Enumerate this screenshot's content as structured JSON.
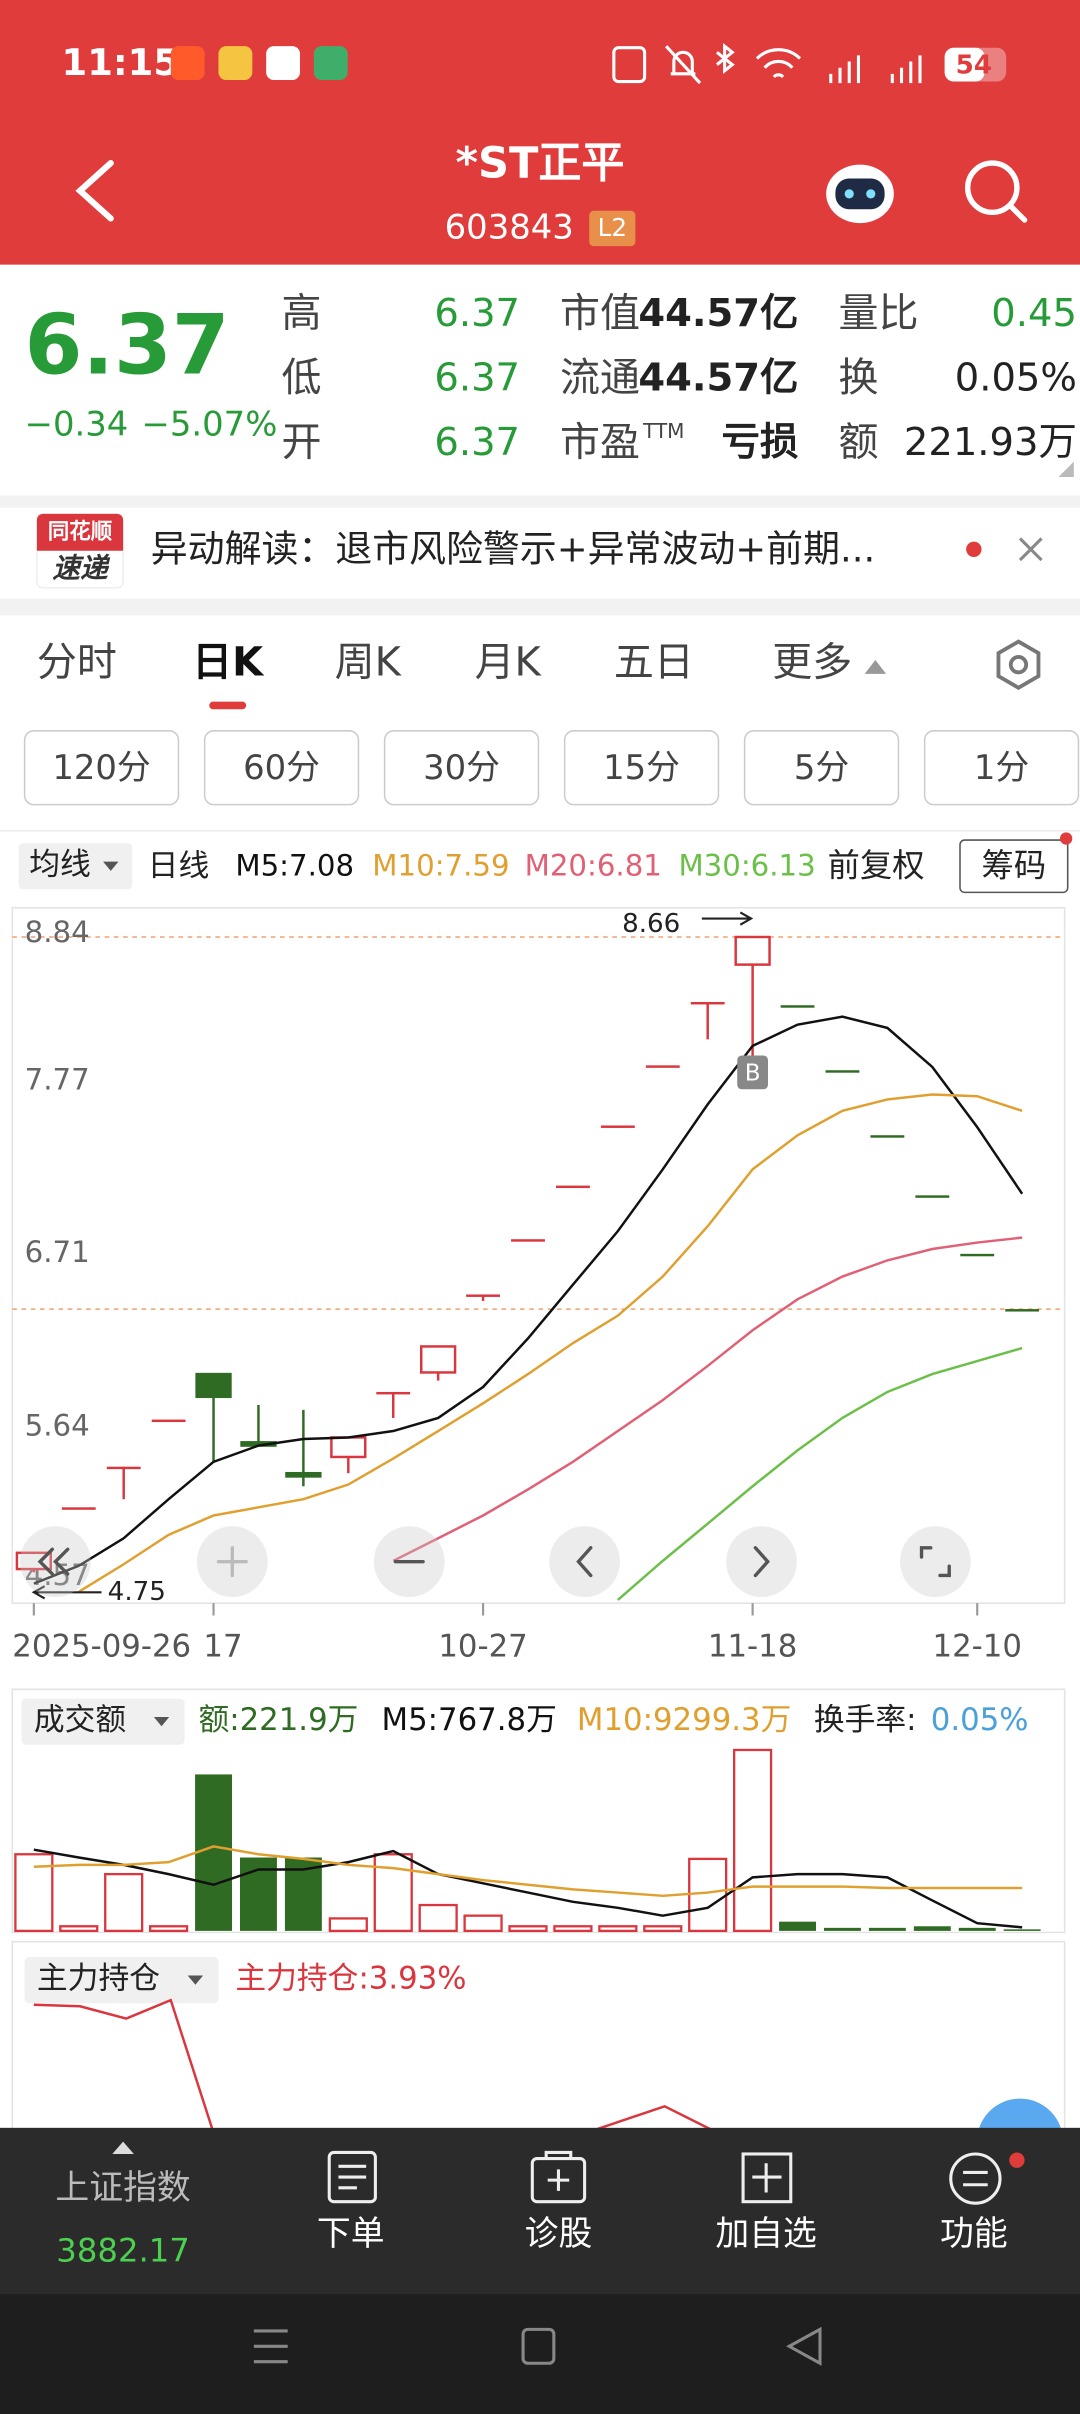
{
  "status": {
    "time": "11:15",
    "battery": "54"
  },
  "header": {
    "title": "*ST正平",
    "code": "603843",
    "badge": "L2"
  },
  "quote": {
    "price": "6.37",
    "change": "−0.34",
    "change_pct": "−5.07%",
    "color": "#279b37",
    "stats": [
      {
        "label": "高",
        "value": "6.37",
        "color": "#279b37"
      },
      {
        "label": "低",
        "value": "6.37",
        "color": "#279b37"
      },
      {
        "label": "开",
        "value": "6.37",
        "color": "#279b37"
      },
      {
        "label": "市值",
        "value": "44.57亿",
        "color": "#222222"
      },
      {
        "label": "流通",
        "value": "44.57亿",
        "color": "#222222"
      },
      {
        "label": "市盈",
        "label_sup": "TTM",
        "value": "亏损",
        "color": "#222222"
      },
      {
        "label": "量比",
        "value": "0.45",
        "color": "#279b37"
      },
      {
        "label": "换",
        "value": "0.05%",
        "color": "#222222"
      },
      {
        "label": "额",
        "value": "221.93万",
        "color": "#222222"
      }
    ]
  },
  "news": {
    "logo_top": "同花顺",
    "logo_bottom": "速递",
    "text": "异动解读：退市风险警示+异常波动+前期..."
  },
  "tabs": [
    "分时",
    "日K",
    "周K",
    "月K",
    "五日",
    "更多"
  ],
  "active_tab": 1,
  "periods": [
    "120分",
    "60分",
    "30分",
    "15分",
    "5分",
    "1分"
  ],
  "indicators": {
    "selector": "均线",
    "period": "日线",
    "adjust": "前复权",
    "chips": "筹码"
  },
  "chart_data": [
    {
      "type": "candlestick",
      "categories": [
        "2025-09-26",
        null,
        null,
        null,
        "17",
        null,
        null,
        null,
        null,
        null,
        "10-27",
        null,
        null,
        null,
        null,
        null,
        "11-18",
        null,
        null,
        null,
        null,
        "12-10",
        null
      ],
      "open": [
        4.77,
        5.15,
        5.4,
        5.69,
        5.97,
        5.55,
        5.36,
        5.46,
        5.86,
        5.98,
        6.46,
        6.8,
        7.13,
        7.5,
        7.87,
        8.26,
        8.49,
        8.24,
        7.84,
        7.44,
        7.07,
        6.71,
        6.37
      ],
      "high": [
        4.87,
        5.15,
        5.4,
        5.69,
        5.97,
        5.78,
        5.75,
        5.58,
        5.86,
        6.14,
        6.46,
        6.8,
        7.13,
        7.5,
        7.87,
        8.26,
        8.66,
        8.24,
        7.84,
        7.44,
        7.07,
        6.71,
        6.37
      ],
      "low": [
        4.75,
        5.15,
        5.2,
        5.69,
        5.43,
        5.53,
        5.28,
        5.36,
        5.7,
        5.93,
        6.42,
        6.8,
        7.13,
        7.5,
        7.87,
        8.03,
        7.89,
        8.24,
        7.84,
        7.44,
        7.07,
        6.71,
        6.37
      ],
      "close": [
        4.87,
        5.15,
        5.4,
        5.69,
        5.83,
        5.53,
        5.34,
        5.58,
        5.86,
        6.14,
        6.46,
        6.8,
        7.13,
        7.5,
        7.87,
        8.26,
        8.66,
        8.24,
        7.84,
        7.44,
        7.07,
        6.71,
        6.37
      ],
      "up_color": "#d9363e",
      "down_color": "#2f6b22",
      "series": [
        {
          "name": "M5:7.08",
          "color": "#111111",
          "values": [
            4.68,
            4.79,
            4.96,
            5.2,
            5.43,
            5.53,
            5.57,
            5.58,
            5.62,
            5.7,
            5.89,
            6.19,
            6.52,
            6.85,
            7.23,
            7.63,
            7.99,
            8.12,
            8.17,
            8.1,
            7.86,
            7.49,
            7.08
          ]
        },
        {
          "name": "M10:7.59",
          "color": "#e0a030",
          "values": [
            null,
            4.63,
            4.8,
            4.98,
            5.1,
            5.15,
            5.2,
            5.29,
            5.45,
            5.62,
            5.79,
            5.97,
            6.16,
            6.33,
            6.57,
            6.88,
            7.23,
            7.44,
            7.59,
            7.66,
            7.69,
            7.68,
            7.59
          ]
        },
        {
          "name": "M20:6.81",
          "color": "#e06075",
          "values": [
            null,
            null,
            null,
            null,
            null,
            null,
            null,
            null,
            4.82,
            4.96,
            5.1,
            5.26,
            5.43,
            5.62,
            5.81,
            6.02,
            6.24,
            6.43,
            6.57,
            6.67,
            6.74,
            6.78,
            6.81
          ]
        },
        {
          "name": "M30:6.13",
          "color": "#6cc04a",
          "values": [
            null,
            null,
            null,
            null,
            null,
            null,
            null,
            null,
            null,
            null,
            null,
            null,
            null,
            4.58,
            4.82,
            5.05,
            5.28,
            5.5,
            5.7,
            5.86,
            5.97,
            6.05,
            6.13
          ]
        }
      ],
      "ylim": [
        4.56,
        8.84
      ],
      "yticks": [
        8.84,
        7.77,
        6.71,
        5.64,
        4.57
      ],
      "ref_lines": [
        8.66,
        6.37
      ],
      "ref_color": "#f0a070",
      "annotations": [
        {
          "text": "8.66",
          "index": 16
        },
        {
          "text": "4.75",
          "index": 0
        },
        {
          "text": "B",
          "index": 16
        }
      ]
    },
    {
      "type": "bar",
      "title": "成交额",
      "amount": "额:221.9万",
      "turnover_label": "换手率:",
      "turnover": "0.05%",
      "values": [
        16600,
        1000,
        12300,
        1000,
        33900,
        15900,
        15900,
        2700,
        16600,
        5600,
        3300,
        1000,
        1000,
        1000,
        1000,
        15600,
        39200,
        2000,
        660,
        660,
        1000,
        660,
        221.9
      ],
      "series": [
        {
          "name": "M5:767.8万",
          "color": "#111111",
          "values": [
            17600,
            15900,
            14300,
            12300,
            10000,
            13300,
            13300,
            14900,
            17300,
            12300,
            10300,
            8300,
            6300,
            5000,
            3300,
            5000,
            11600,
            12300,
            12300,
            11600,
            6600,
            1660,
            767.8
          ]
        },
        {
          "name": "M10:9299.3万",
          "color": "#e0a030",
          "values": [
            13900,
            14300,
            14300,
            14900,
            18300,
            16600,
            15600,
            14300,
            13600,
            12300,
            11000,
            10000,
            9000,
            8300,
            7600,
            8300,
            9600,
            9600,
            9600,
            9300,
            9300,
            9300,
            9299.3
          ]
        }
      ],
      "ylim": [
        0,
        40000
      ]
    }
  ],
  "position": {
    "title": "主力持仓",
    "value": "主力持仓:3.93%"
  },
  "bottom_bar": {
    "index_name": "上证指数",
    "index_value": "3882.17",
    "items": [
      "下单",
      "诊股",
      "加自选",
      "功能"
    ]
  }
}
